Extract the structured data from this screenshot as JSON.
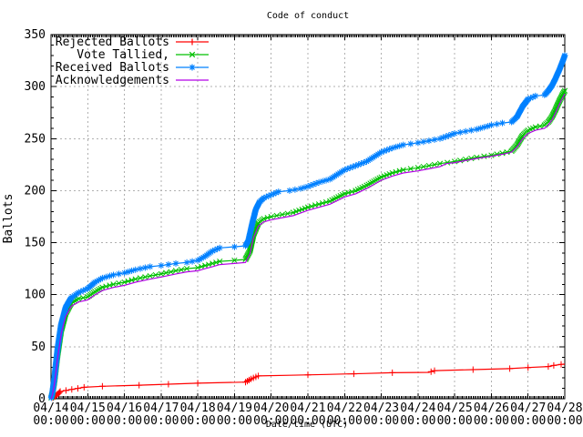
{
  "window": {
    "background": "#ffffff",
    "text_color": "#000000"
  },
  "chart_data": {
    "type": "line",
    "title": "Code of conduct",
    "xlabel": "Date/time (UTC)",
    "ylabel": "Ballots",
    "grid": true,
    "grid_color": "#b0b0b0",
    "border_color": "#000000",
    "legend_position": "top-left-inside",
    "ylim": [
      0,
      350
    ],
    "y_tick_step": 50,
    "y_minor_step": 10,
    "y_tick_labels": [
      "0",
      "50",
      "100",
      "150",
      "200",
      "250",
      "300",
      "350"
    ],
    "xlim_days": [
      0,
      14
    ],
    "x_major_every_days": 1,
    "x_minor_ticks_per_day": 24,
    "x_tick_dates": [
      "04/14",
      "04/15",
      "04/16",
      "04/17",
      "04/18",
      "04/19",
      "04/20",
      "04/21",
      "04/22",
      "04/23",
      "04/24",
      "04/25",
      "04/26",
      "04/27",
      "04/28"
    ],
    "x_tick_time_line": "00:00",
    "x_axis_note": "x values below are days since 04/14 00:00 UTC",
    "series": [
      {
        "name": "Rejected Ballots",
        "color": "#ff0000",
        "marker": "plus",
        "points": [
          [
            0,
            0
          ],
          [
            0.1,
            2
          ],
          [
            0.2,
            5
          ],
          [
            0.25,
            7
          ],
          [
            0.5,
            8.6
          ],
          [
            0.9,
            11
          ],
          [
            1.4,
            12
          ],
          [
            2.4,
            13
          ],
          [
            3.2,
            14
          ],
          [
            4.0,
            15
          ],
          [
            5.3,
            16
          ],
          [
            5.45,
            19
          ],
          [
            5.65,
            22
          ],
          [
            6.5,
            22.6
          ],
          [
            7.5,
            23.4
          ],
          [
            8.5,
            24.2
          ],
          [
            9.3,
            25
          ],
          [
            10.3,
            25.4
          ],
          [
            10.45,
            27
          ],
          [
            11.5,
            28
          ],
          [
            12.5,
            29
          ],
          [
            13.0,
            30
          ],
          [
            13.55,
            31
          ],
          [
            13.7,
            32
          ],
          [
            13.9,
            33
          ],
          [
            14,
            33.4
          ]
        ]
      },
      {
        "name": "Vote Tallied,",
        "color": "#00c000",
        "marker": "cross",
        "points": [
          [
            0,
            0
          ],
          [
            0.04,
            5
          ],
          [
            0.1,
            18
          ],
          [
            0.18,
            42
          ],
          [
            0.28,
            66
          ],
          [
            0.4,
            82
          ],
          [
            0.55,
            92
          ],
          [
            0.75,
            96
          ],
          [
            1.0,
            98
          ],
          [
            1.2,
            103
          ],
          [
            1.4,
            107
          ],
          [
            1.7,
            110
          ],
          [
            2.0,
            112
          ],
          [
            2.3,
            115
          ],
          [
            2.7,
            118
          ],
          [
            3.0,
            120
          ],
          [
            3.4,
            123
          ],
          [
            3.7,
            125
          ],
          [
            4.0,
            126
          ],
          [
            4.2,
            128
          ],
          [
            4.4,
            130
          ],
          [
            4.6,
            132
          ],
          [
            5.0,
            133
          ],
          [
            5.3,
            134
          ],
          [
            5.42,
            142
          ],
          [
            5.52,
            158
          ],
          [
            5.65,
            169
          ],
          [
            5.8,
            173
          ],
          [
            6.0,
            175
          ],
          [
            6.3,
            177
          ],
          [
            6.6,
            179
          ],
          [
            7.0,
            184
          ],
          [
            7.3,
            187
          ],
          [
            7.6,
            190
          ],
          [
            8.0,
            197
          ],
          [
            8.3,
            200
          ],
          [
            8.6,
            205
          ],
          [
            9.0,
            213
          ],
          [
            9.3,
            217
          ],
          [
            9.6,
            220
          ],
          [
            10.0,
            222
          ],
          [
            10.3,
            224
          ],
          [
            10.6,
            226
          ],
          [
            11.0,
            228
          ],
          [
            11.3,
            230
          ],
          [
            11.6,
            232
          ],
          [
            12.0,
            234
          ],
          [
            12.3,
            236
          ],
          [
            12.55,
            238
          ],
          [
            12.7,
            244
          ],
          [
            12.85,
            253
          ],
          [
            13.0,
            258
          ],
          [
            13.2,
            261
          ],
          [
            13.45,
            263
          ],
          [
            13.55,
            266
          ],
          [
            13.65,
            271
          ],
          [
            13.75,
            278
          ],
          [
            13.85,
            286
          ],
          [
            13.95,
            293
          ],
          [
            14,
            296
          ]
        ]
      },
      {
        "name": "Received Ballots",
        "color": "#0080ff",
        "marker": "star",
        "points": [
          [
            0,
            0
          ],
          [
            0.04,
            6
          ],
          [
            0.1,
            22
          ],
          [
            0.18,
            48
          ],
          [
            0.28,
            72
          ],
          [
            0.4,
            88
          ],
          [
            0.55,
            97
          ],
          [
            0.75,
            102
          ],
          [
            1.0,
            106
          ],
          [
            1.2,
            112
          ],
          [
            1.4,
            116
          ],
          [
            1.7,
            119
          ],
          [
            2.0,
            121
          ],
          [
            2.3,
            124
          ],
          [
            2.7,
            127
          ],
          [
            3.0,
            128
          ],
          [
            3.4,
            130
          ],
          [
            3.7,
            131
          ],
          [
            4.0,
            133
          ],
          [
            4.2,
            137
          ],
          [
            4.4,
            142
          ],
          [
            4.6,
            145
          ],
          [
            5.0,
            146
          ],
          [
            5.3,
            147
          ],
          [
            5.38,
            152
          ],
          [
            5.48,
            168
          ],
          [
            5.58,
            182
          ],
          [
            5.68,
            189
          ],
          [
            5.8,
            193
          ],
          [
            6.0,
            196
          ],
          [
            6.2,
            199
          ],
          [
            6.5,
            200
          ],
          [
            6.8,
            202
          ],
          [
            7.0,
            204
          ],
          [
            7.3,
            208
          ],
          [
            7.6,
            211
          ],
          [
            8.0,
            220
          ],
          [
            8.3,
            224
          ],
          [
            8.6,
            228
          ],
          [
            9.0,
            237
          ],
          [
            9.3,
            241
          ],
          [
            9.6,
            244
          ],
          [
            10.0,
            246
          ],
          [
            10.3,
            248
          ],
          [
            10.6,
            250
          ],
          [
            11.0,
            255
          ],
          [
            11.3,
            257
          ],
          [
            11.6,
            259
          ],
          [
            12.0,
            263
          ],
          [
            12.3,
            265
          ],
          [
            12.55,
            266
          ],
          [
            12.7,
            271
          ],
          [
            12.85,
            281
          ],
          [
            13.0,
            288
          ],
          [
            13.2,
            291
          ],
          [
            13.45,
            292
          ],
          [
            13.55,
            296
          ],
          [
            13.65,
            301
          ],
          [
            13.75,
            308
          ],
          [
            13.85,
            316
          ],
          [
            13.95,
            325
          ],
          [
            14,
            330
          ]
        ]
      },
      {
        "name": "Acknowledgements",
        "color": "#b400e6",
        "marker": "none",
        "points": [
          [
            0,
            0
          ],
          [
            0.04,
            4
          ],
          [
            0.1,
            16
          ],
          [
            0.18,
            40
          ],
          [
            0.28,
            63
          ],
          [
            0.4,
            79
          ],
          [
            0.55,
            89
          ],
          [
            0.75,
            93
          ],
          [
            1.0,
            95
          ],
          [
            1.2,
            100
          ],
          [
            1.4,
            104
          ],
          [
            1.7,
            107
          ],
          [
            2.0,
            109
          ],
          [
            2.3,
            112
          ],
          [
            2.7,
            115
          ],
          [
            3.0,
            117
          ],
          [
            3.4,
            120
          ],
          [
            3.7,
            122
          ],
          [
            4.0,
            123
          ],
          [
            4.2,
            125
          ],
          [
            4.4,
            127
          ],
          [
            4.6,
            129
          ],
          [
            5.0,
            130
          ],
          [
            5.3,
            131
          ],
          [
            5.42,
            139
          ],
          [
            5.52,
            155
          ],
          [
            5.65,
            166
          ],
          [
            5.8,
            170
          ],
          [
            6.0,
            172
          ],
          [
            6.3,
            174
          ],
          [
            6.6,
            176
          ],
          [
            7.0,
            181
          ],
          [
            7.3,
            184
          ],
          [
            7.6,
            187
          ],
          [
            8.0,
            194
          ],
          [
            8.3,
            197
          ],
          [
            8.6,
            202
          ],
          [
            9.0,
            210
          ],
          [
            9.3,
            214
          ],
          [
            9.6,
            217
          ],
          [
            10.0,
            219
          ],
          [
            10.3,
            221
          ],
          [
            10.6,
            223
          ],
          [
            10.77,
            226
          ],
          [
            11.0,
            227
          ],
          [
            11.3,
            229
          ],
          [
            11.6,
            231
          ],
          [
            12.0,
            233
          ],
          [
            12.3,
            235
          ],
          [
            12.55,
            237
          ],
          [
            12.7,
            242
          ],
          [
            12.85,
            250
          ],
          [
            13.0,
            255
          ],
          [
            13.2,
            258
          ],
          [
            13.45,
            260
          ],
          [
            13.55,
            263
          ],
          [
            13.65,
            268
          ],
          [
            13.75,
            275
          ],
          [
            13.85,
            283
          ],
          [
            13.95,
            290
          ],
          [
            14,
            293
          ]
        ]
      }
    ]
  }
}
